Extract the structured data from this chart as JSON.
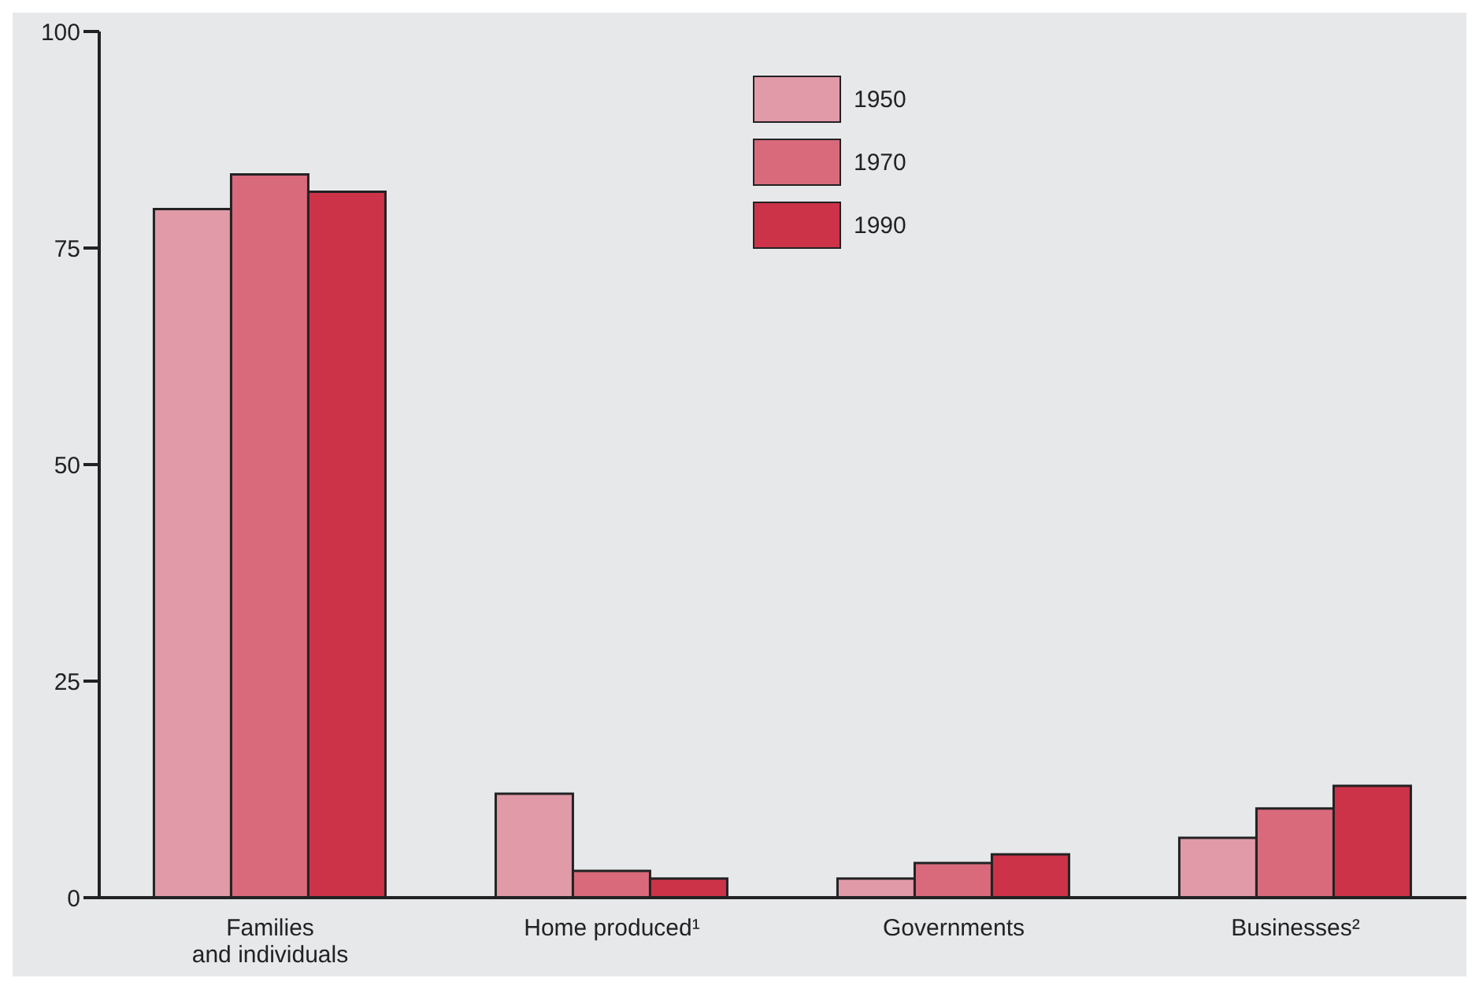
{
  "chart_data": {
    "type": "bar",
    "categories": [
      "Families\nand individuals",
      "Home produced¹",
      "Governments",
      "Businesses²"
    ],
    "series": [
      {
        "name": "1950",
        "color": "#e09aa8",
        "values": [
          79.5,
          12,
          2.2,
          6.9
        ]
      },
      {
        "name": "1970",
        "color": "#d96a7c",
        "values": [
          83.5,
          3.1,
          4,
          10.3
        ]
      },
      {
        "name": "1990",
        "color": "#cc3349",
        "values": [
          81.5,
          2.2,
          5,
          12.9
        ]
      }
    ],
    "ylim": [
      0,
      100
    ],
    "yticks": [
      0,
      25,
      50,
      75,
      100
    ],
    "grid": false,
    "legend": "top"
  }
}
